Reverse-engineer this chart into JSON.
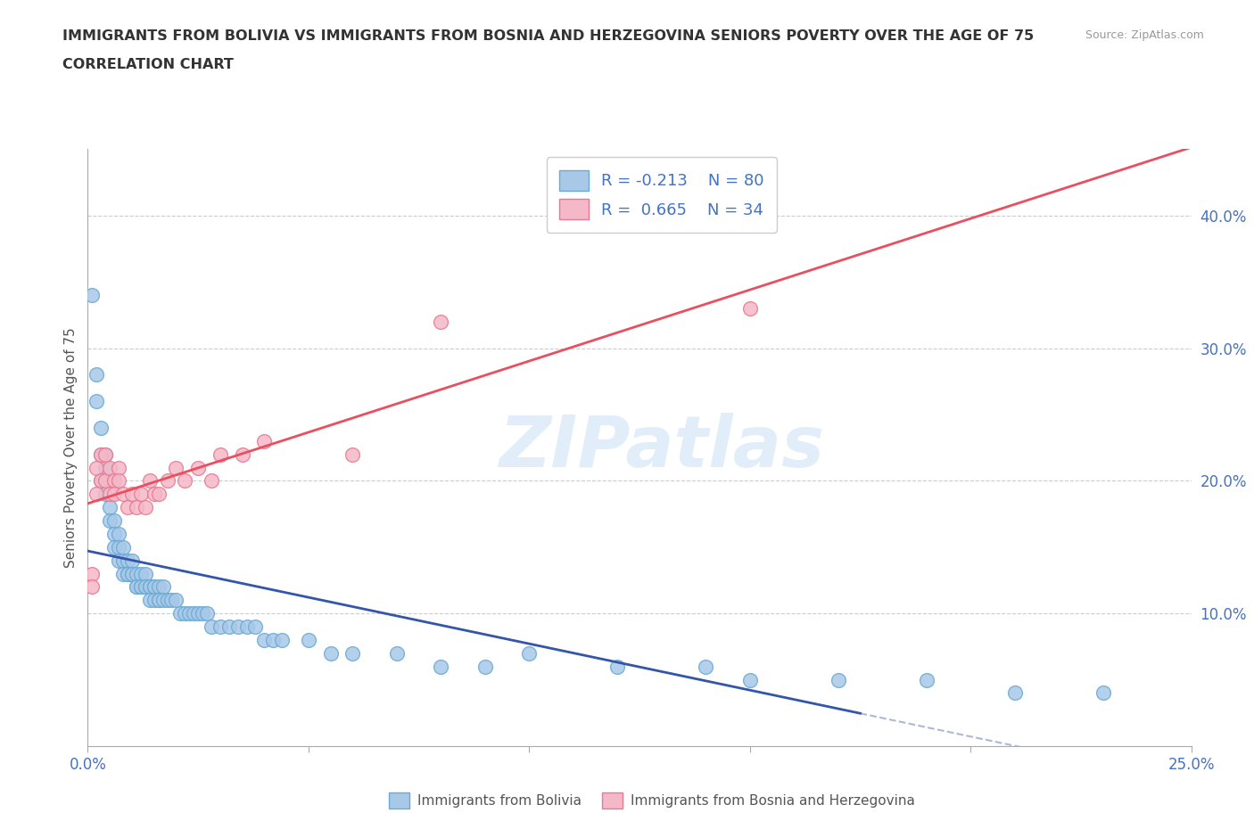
{
  "title_line1": "IMMIGRANTS FROM BOLIVIA VS IMMIGRANTS FROM BOSNIA AND HERZEGOVINA SENIORS POVERTY OVER THE AGE OF 75",
  "title_line2": "CORRELATION CHART",
  "source_text": "Source: ZipAtlas.com",
  "ylabel": "Seniors Poverty Over the Age of 75",
  "x_min": 0.0,
  "x_max": 0.25,
  "y_min": 0.0,
  "y_max": 0.45,
  "y_ticks": [
    0.1,
    0.2,
    0.3,
    0.4
  ],
  "y_tick_labels": [
    "10.0%",
    "20.0%",
    "30.0%",
    "40.0%"
  ],
  "x_ticks_show": [
    0.0,
    0.25
  ],
  "x_tick_labels_show": [
    "0.0%",
    "25.0%"
  ],
  "x_ticks_minor": [
    0.05,
    0.1,
    0.15,
    0.2
  ],
  "grid_color": "#cccccc",
  "background_color": "#ffffff",
  "watermark_text": "ZIPatlas",
  "bolivia_color": "#a8c8e8",
  "bolivia_edge": "#6aaad4",
  "bosnia_color": "#f5b8c8",
  "bosnia_edge": "#e87a90",
  "bolivia_line_color": "#3355aa",
  "bolivia_line_dash_color": "#8899cc",
  "bosnia_line_color": "#e85060",
  "bolivia_r": -0.213,
  "bolivia_n": 80,
  "bosnia_r": 0.665,
  "bosnia_n": 34,
  "bolivia_points": [
    [
      0.001,
      0.34
    ],
    [
      0.002,
      0.28
    ],
    [
      0.002,
      0.26
    ],
    [
      0.003,
      0.24
    ],
    [
      0.003,
      0.2
    ],
    [
      0.003,
      0.22
    ],
    [
      0.004,
      0.21
    ],
    [
      0.004,
      0.19
    ],
    [
      0.004,
      0.22
    ],
    [
      0.005,
      0.2
    ],
    [
      0.005,
      0.18
    ],
    [
      0.005,
      0.17
    ],
    [
      0.006,
      0.17
    ],
    [
      0.006,
      0.16
    ],
    [
      0.006,
      0.15
    ],
    [
      0.007,
      0.16
    ],
    [
      0.007,
      0.15
    ],
    [
      0.007,
      0.14
    ],
    [
      0.008,
      0.15
    ],
    [
      0.008,
      0.14
    ],
    [
      0.008,
      0.13
    ],
    [
      0.009,
      0.14
    ],
    [
      0.009,
      0.13
    ],
    [
      0.009,
      0.13
    ],
    [
      0.01,
      0.14
    ],
    [
      0.01,
      0.13
    ],
    [
      0.01,
      0.13
    ],
    [
      0.011,
      0.13
    ],
    [
      0.011,
      0.12
    ],
    [
      0.011,
      0.12
    ],
    [
      0.012,
      0.13
    ],
    [
      0.012,
      0.12
    ],
    [
      0.012,
      0.12
    ],
    [
      0.013,
      0.13
    ],
    [
      0.013,
      0.12
    ],
    [
      0.013,
      0.12
    ],
    [
      0.014,
      0.12
    ],
    [
      0.014,
      0.12
    ],
    [
      0.014,
      0.11
    ],
    [
      0.015,
      0.12
    ],
    [
      0.015,
      0.12
    ],
    [
      0.015,
      0.11
    ],
    [
      0.016,
      0.12
    ],
    [
      0.016,
      0.11
    ],
    [
      0.016,
      0.11
    ],
    [
      0.017,
      0.12
    ],
    [
      0.017,
      0.11
    ],
    [
      0.018,
      0.11
    ],
    [
      0.019,
      0.11
    ],
    [
      0.02,
      0.11
    ],
    [
      0.021,
      0.1
    ],
    [
      0.022,
      0.1
    ],
    [
      0.023,
      0.1
    ],
    [
      0.024,
      0.1
    ],
    [
      0.025,
      0.1
    ],
    [
      0.026,
      0.1
    ],
    [
      0.027,
      0.1
    ],
    [
      0.028,
      0.09
    ],
    [
      0.03,
      0.09
    ],
    [
      0.032,
      0.09
    ],
    [
      0.034,
      0.09
    ],
    [
      0.036,
      0.09
    ],
    [
      0.038,
      0.09
    ],
    [
      0.04,
      0.08
    ],
    [
      0.042,
      0.08
    ],
    [
      0.044,
      0.08
    ],
    [
      0.05,
      0.08
    ],
    [
      0.055,
      0.07
    ],
    [
      0.06,
      0.07
    ],
    [
      0.07,
      0.07
    ],
    [
      0.08,
      0.06
    ],
    [
      0.09,
      0.06
    ],
    [
      0.1,
      0.07
    ],
    [
      0.12,
      0.06
    ],
    [
      0.14,
      0.06
    ],
    [
      0.15,
      0.05
    ],
    [
      0.17,
      0.05
    ],
    [
      0.19,
      0.05
    ],
    [
      0.21,
      0.04
    ],
    [
      0.23,
      0.04
    ]
  ],
  "bosnia_points": [
    [
      0.001,
      0.13
    ],
    [
      0.001,
      0.12
    ],
    [
      0.002,
      0.19
    ],
    [
      0.002,
      0.21
    ],
    [
      0.003,
      0.22
    ],
    [
      0.003,
      0.2
    ],
    [
      0.004,
      0.22
    ],
    [
      0.004,
      0.2
    ],
    [
      0.005,
      0.21
    ],
    [
      0.005,
      0.19
    ],
    [
      0.006,
      0.2
    ],
    [
      0.006,
      0.19
    ],
    [
      0.007,
      0.21
    ],
    [
      0.007,
      0.2
    ],
    [
      0.008,
      0.19
    ],
    [
      0.009,
      0.18
    ],
    [
      0.01,
      0.19
    ],
    [
      0.011,
      0.18
    ],
    [
      0.012,
      0.19
    ],
    [
      0.013,
      0.18
    ],
    [
      0.014,
      0.2
    ],
    [
      0.015,
      0.19
    ],
    [
      0.016,
      0.19
    ],
    [
      0.018,
      0.2
    ],
    [
      0.02,
      0.21
    ],
    [
      0.022,
      0.2
    ],
    [
      0.025,
      0.21
    ],
    [
      0.028,
      0.2
    ],
    [
      0.03,
      0.22
    ],
    [
      0.035,
      0.22
    ],
    [
      0.04,
      0.23
    ],
    [
      0.06,
      0.22
    ],
    [
      0.08,
      0.32
    ],
    [
      0.15,
      0.33
    ]
  ]
}
